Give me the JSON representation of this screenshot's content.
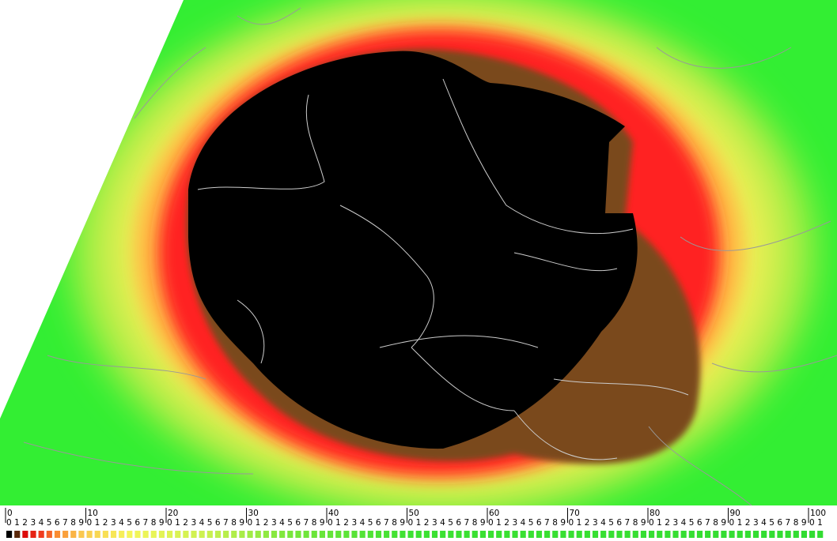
{
  "legend": {
    "scale_labels": [
      "0",
      "10",
      "20",
      "30",
      "40",
      "50",
      "60",
      "70",
      "80",
      "90",
      "100"
    ],
    "digits": [
      "0",
      "1",
      "2",
      "3",
      "4",
      "5",
      "6",
      "7",
      "8",
      "9"
    ]
  }
}
